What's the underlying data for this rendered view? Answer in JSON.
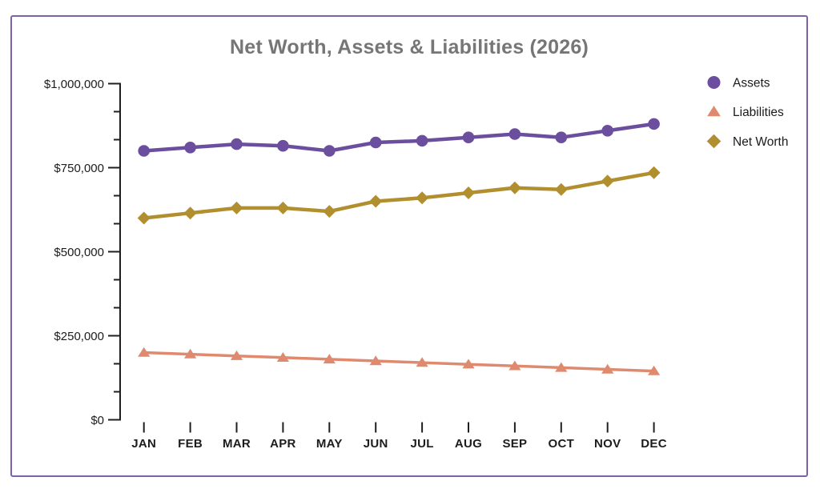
{
  "card": {
    "border_color": "#7d62a8",
    "background": "#ffffff"
  },
  "chart_data": {
    "type": "line",
    "title": "Net Worth, Assets & Liabilities (2026)",
    "xlabel": "",
    "ylabel": "",
    "categories": [
      "JAN",
      "FEB",
      "MAR",
      "APR",
      "MAY",
      "JUN",
      "JUL",
      "AUG",
      "SEP",
      "OCT",
      "NOV",
      "DEC"
    ],
    "series": [
      {
        "name": "Assets",
        "marker": "circle",
        "color": "#6b4e9e",
        "values": [
          800000,
          810000,
          820000,
          815000,
          800000,
          825000,
          830000,
          840000,
          850000,
          840000,
          860000,
          880000
        ]
      },
      {
        "name": "Liabilities",
        "marker": "triangle",
        "color": "#df8a6e",
        "values": [
          200000,
          195000,
          190000,
          185000,
          180000,
          175000,
          170000,
          165000,
          160000,
          155000,
          150000,
          145000
        ]
      },
      {
        "name": "Net Worth",
        "marker": "diamond",
        "color": "#b28f2e",
        "values": [
          600000,
          615000,
          630000,
          630000,
          620000,
          650000,
          660000,
          675000,
          690000,
          685000,
          710000,
          735000
        ]
      }
    ],
    "ylim": [
      0,
      1000000
    ],
    "y_ticks": [
      {
        "value": 0,
        "label": "$0"
      },
      {
        "value": 250000,
        "label": "$250,000"
      },
      {
        "value": 500000,
        "label": "$500,000"
      },
      {
        "value": 750000,
        "label": "$750,000"
      },
      {
        "value": 1000000,
        "label": "$1,000,000"
      }
    ],
    "minor_ticks_per_interval": 2,
    "grid": false,
    "legend_position": "right",
    "colors": {
      "title": "#767676",
      "axis": "#1f1f1f",
      "tick_label": "#1c1c1c",
      "legend_text": "#1b1b1b"
    }
  }
}
